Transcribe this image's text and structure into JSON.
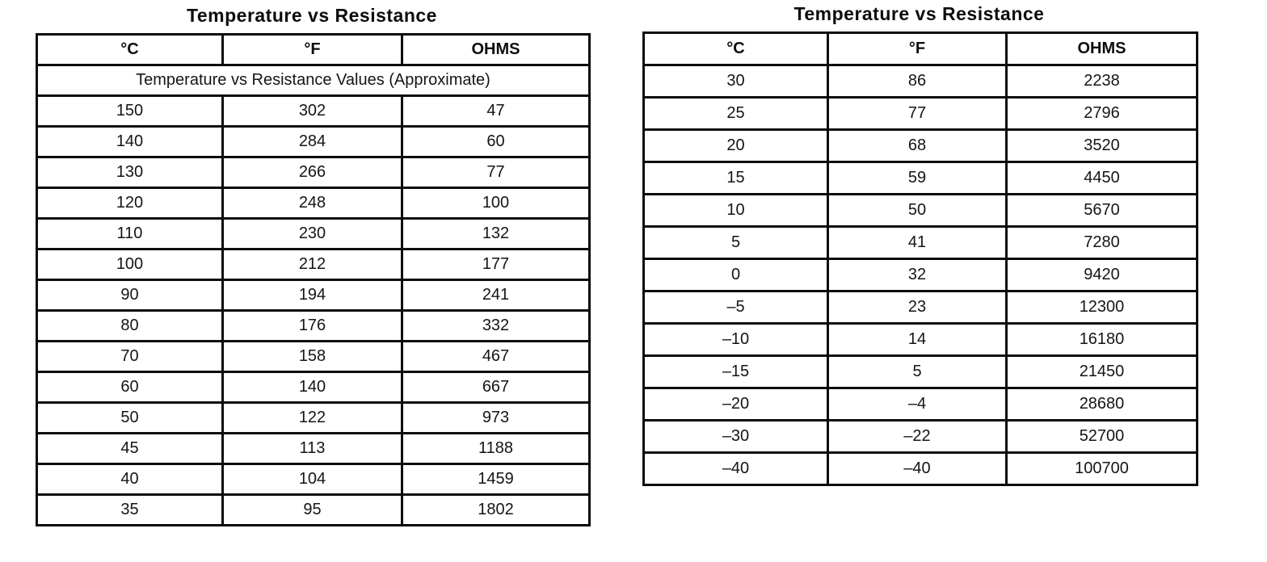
{
  "page": {
    "background": "#ffffff",
    "text_color": "#111111",
    "border_color": "#0d0d0d"
  },
  "left_table": {
    "title": "Temperature vs Resistance",
    "headers": [
      "°C",
      "°F",
      "OHMS"
    ],
    "subtitle_row": "Temperature vs Resistance Values (Approximate)",
    "rows": [
      [
        "150",
        "302",
        "47"
      ],
      [
        "140",
        "284",
        "60"
      ],
      [
        "130",
        "266",
        "77"
      ],
      [
        "120",
        "248",
        "100"
      ],
      [
        "110",
        "230",
        "132"
      ],
      [
        "100",
        "212",
        "177"
      ],
      [
        "90",
        "194",
        "241"
      ],
      [
        "80",
        "176",
        "332"
      ],
      [
        "70",
        "158",
        "467"
      ],
      [
        "60",
        "140",
        "667"
      ],
      [
        "50",
        "122",
        "973"
      ],
      [
        "45",
        "113",
        "1188"
      ],
      [
        "40",
        "104",
        "1459"
      ],
      [
        "35",
        "95",
        "1802"
      ]
    ]
  },
  "right_table": {
    "title": "Temperature vs Resistance",
    "headers": [
      "°C",
      "°F",
      "OHMS"
    ],
    "rows": [
      [
        "30",
        "86",
        "2238"
      ],
      [
        "25",
        "77",
        "2796"
      ],
      [
        "20",
        "68",
        "3520"
      ],
      [
        "15",
        "59",
        "4450"
      ],
      [
        "10",
        "50",
        "5670"
      ],
      [
        "5",
        "41",
        "7280"
      ],
      [
        "0",
        "32",
        "9420"
      ],
      [
        "–5",
        "23",
        "12300"
      ],
      [
        "–10",
        "14",
        "16180"
      ],
      [
        "–15",
        "5",
        "21450"
      ],
      [
        "–20",
        "–4",
        "28680"
      ],
      [
        "–30",
        "–22",
        "52700"
      ],
      [
        "–40",
        "–40",
        "100700"
      ]
    ]
  }
}
